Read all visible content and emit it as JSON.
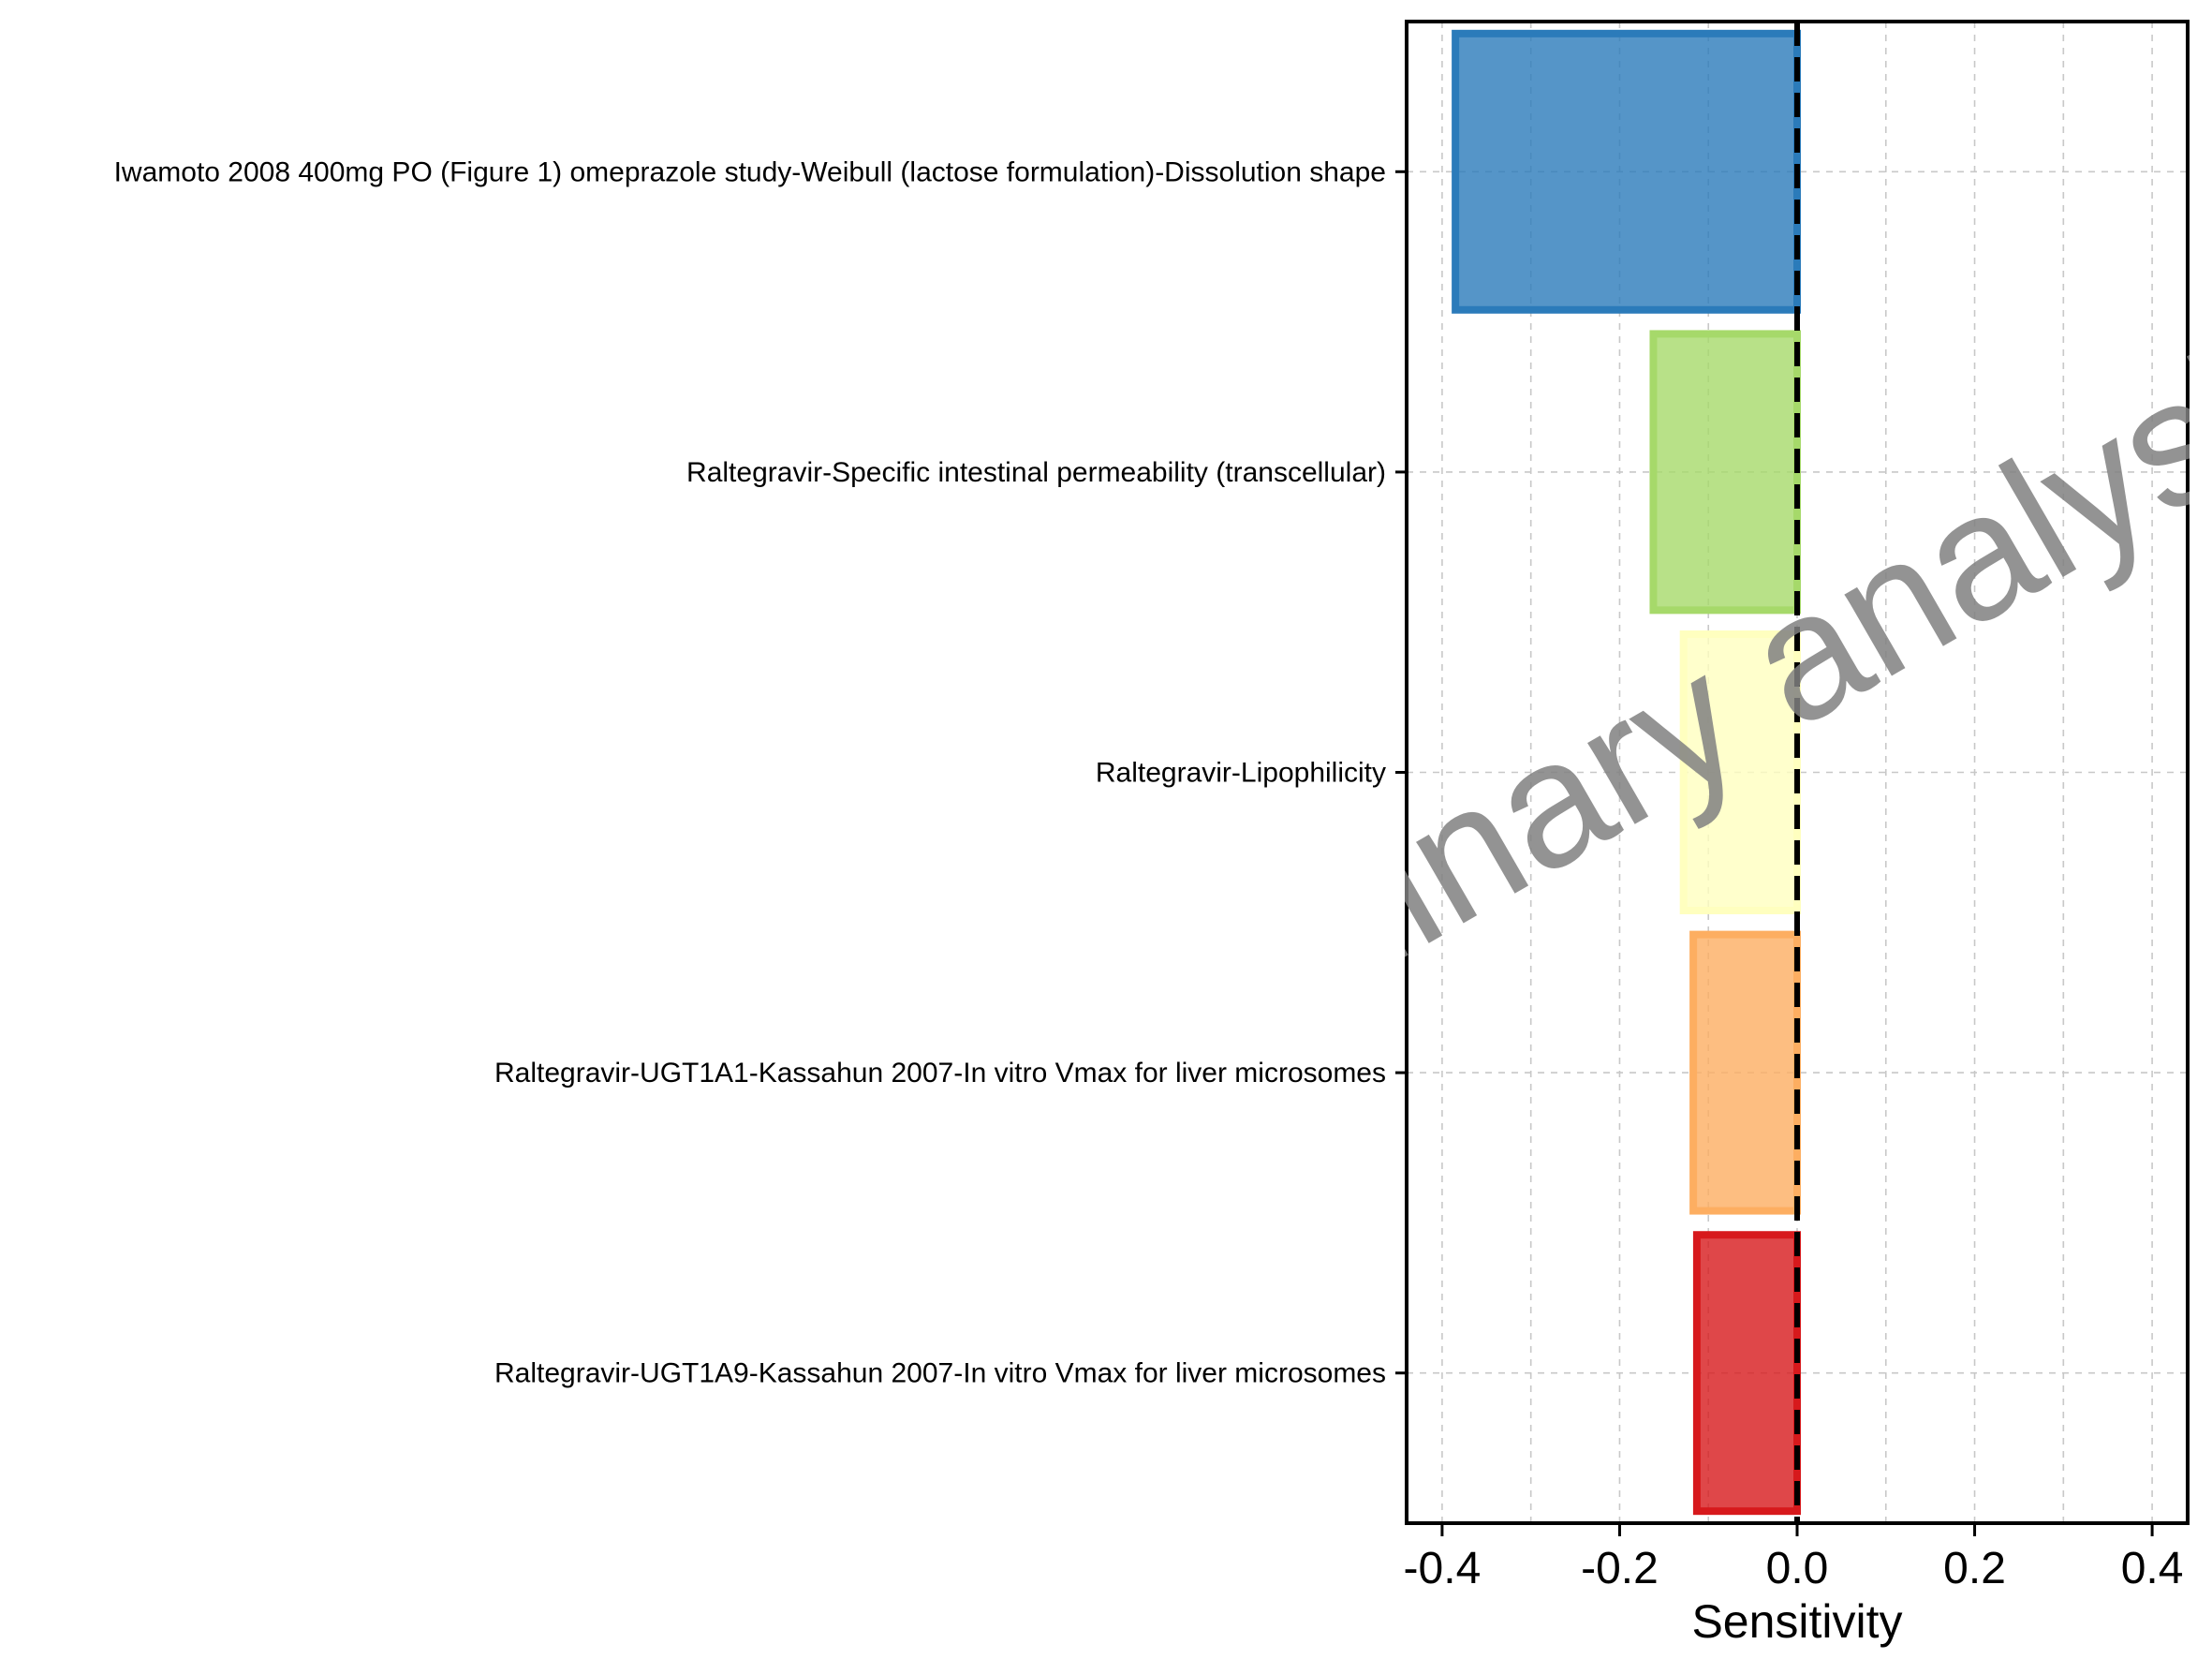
{
  "chart_data": {
    "type": "bar",
    "orientation": "horizontal",
    "categories": [
      "Iwamoto 2008 400mg PO (Figure 1) omeprazole study-Weibull (lactose formulation)-Dissolution shape",
      "Raltegravir-Specific intestinal permeability (transcellular)",
      "Raltegravir-Lipophilicity",
      "Raltegravir-UGT1A1-Kassahun 2007-In vitro Vmax for liver microsomes",
      "Raltegravir-UGT1A9-Kassahun 2007-In vitro Vmax for liver microsomes"
    ],
    "values": [
      -0.385,
      -0.162,
      -0.128,
      -0.117,
      -0.113
    ],
    "colors": [
      "#2b7bba",
      "#a6d96a",
      "#ffffbf",
      "#fdae61",
      "#d7191c"
    ],
    "bar_opacity": 0.8,
    "xlabel": "Sensitivity",
    "ylabel": "",
    "xlim": [
      -0.44,
      0.44
    ],
    "xticks": [
      -0.4,
      -0.2,
      0.0,
      0.2,
      0.4
    ],
    "xtick_labels": [
      "-0.4",
      "-0.2",
      "0.0",
      "0.2",
      "0.4"
    ],
    "reference_line": 0,
    "grid": true,
    "watermark": "Preliminary analysis"
  }
}
